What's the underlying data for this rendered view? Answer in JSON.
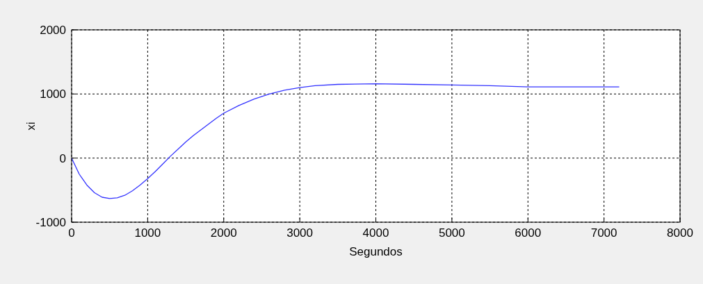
{
  "chart_data": {
    "type": "line",
    "xlabel": "Segundos",
    "ylabel": "xi",
    "x": [
      0,
      100,
      200,
      300,
      400,
      500,
      600,
      700,
      800,
      900,
      1000,
      1100,
      1200,
      1300,
      1400,
      1500,
      1600,
      1700,
      1800,
      1900,
      2000,
      2200,
      2400,
      2600,
      2800,
      3000,
      3200,
      3500,
      4000,
      4500,
      5000,
      5500,
      6000,
      6500,
      7200
    ],
    "series": [
      {
        "color": "#3333ff",
        "values": [
          0,
          -250,
          -420,
          -540,
          -610,
          -630,
          -620,
          -580,
          -510,
          -420,
          -320,
          -210,
          -90,
          30,
          140,
          250,
          350,
          440,
          530,
          620,
          700,
          820,
          920,
          1000,
          1060,
          1100,
          1130,
          1150,
          1160,
          1150,
          1140,
          1130,
          1110,
          1110,
          1110
        ]
      }
    ],
    "xlim": [
      0,
      8000
    ],
    "ylim": [
      -1000,
      2000
    ],
    "xticks": [
      0,
      1000,
      2000,
      3000,
      4000,
      5000,
      6000,
      7000,
      8000
    ],
    "yticks": [
      -1000,
      0,
      1000,
      2000
    ],
    "grid": true,
    "marker": "none",
    "line_style": "solid"
  }
}
